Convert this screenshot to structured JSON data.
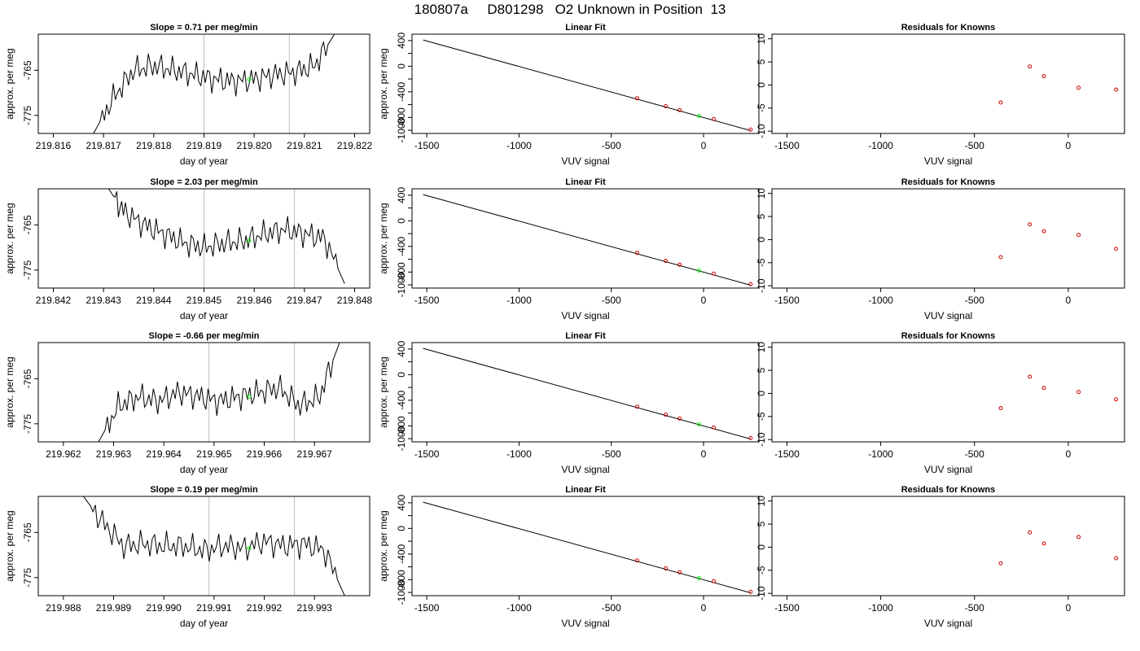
{
  "page_title": "180807a     D801298   O2 Unknown in Position  13",
  "colors": {
    "trace": "#000000",
    "unknown": "#00ff00",
    "known": "#cc0000",
    "cursor": "#bebebe",
    "frame": "#000000"
  },
  "chart_data": [
    {
      "panel": "time-series-row-1",
      "type": "line",
      "title": "Slope =  0.71  per meg/min",
      "xlabel": "day of year",
      "ylabel": "approx. per meg",
      "xlim": [
        219.8157,
        219.8223
      ],
      "ylim": [
        -779,
        -757
      ],
      "xticks": [
        219.816,
        219.817,
        219.818,
        219.819,
        219.82,
        219.821,
        219.822
      ],
      "xtick_labels": [
        "219.816",
        "219.817",
        "219.818",
        "219.819",
        "219.820",
        "219.821",
        "219.822"
      ],
      "yticks": [
        -765,
        -775
      ],
      "ytick_labels": [
        "-765",
        "-775"
      ],
      "vlines": [
        219.819,
        219.8207
      ],
      "unknown_point": {
        "x": 219.8199,
        "y": -767
      },
      "series": [
        {
          "x": [
            219.8168,
            219.8172,
            219.8176,
            219.818,
            219.8184,
            219.8188,
            219.8192,
            219.8196,
            219.82,
            219.8204,
            219.8208,
            219.8212,
            219.8216
          ],
          "y": [
            -779,
            -771,
            -765,
            -764,
            -765,
            -766,
            -767,
            -767.5,
            -767,
            -766,
            -765.5,
            -764,
            -757
          ]
        }
      ]
    },
    {
      "panel": "linear-fit-row-1",
      "type": "scatter",
      "title": "Linear Fit",
      "xlabel": "VUV signal",
      "ylabel": "approx. per meg",
      "xlim": [
        -1580,
        300
      ],
      "ylim": [
        -1050,
        500
      ],
      "xticks": [
        -1500,
        -1000,
        -500,
        0
      ],
      "xtick_labels": [
        "-1500",
        "-1000",
        "-500",
        "0"
      ],
      "yticks": [
        400,
        200,
        0,
        -200,
        -400,
        -600,
        -800,
        -1000
      ],
      "ytick_labels": [
        "400",
        "",
        "0",
        "",
        "-400",
        "",
        "-800",
        "-1000"
      ],
      "fit_line": [
        [
          -1520,
          410
        ],
        [
          255,
          -1005
        ]
      ],
      "known_points": [
        [
          -360,
          -500
        ],
        [
          -205,
          -625
        ],
        [
          -130,
          -685
        ],
        [
          55,
          -825
        ],
        [
          255,
          -990
        ]
      ],
      "unknown_point": [
        -25,
        -775
      ]
    },
    {
      "panel": "residuals-row-1",
      "type": "scatter",
      "title": "Residuals for Knowns",
      "xlabel": "VUV signal",
      "ylabel": "",
      "xlim": [
        -1580,
        300
      ],
      "ylim": [
        -10.5,
        11
      ],
      "xticks": [
        -1500,
        -1000,
        -500,
        0
      ],
      "xtick_labels": [
        "-1500",
        "-1000",
        "-500",
        "0"
      ],
      "yticks": [
        10,
        5,
        0,
        -5,
        -10
      ],
      "ytick_labels": [
        "10",
        "5",
        "0",
        "-5",
        "-10"
      ],
      "points": [
        [
          -360,
          -3.8
        ],
        [
          -205,
          4
        ],
        [
          -130,
          1.9
        ],
        [
          55,
          -0.6
        ],
        [
          255,
          -1
        ]
      ]
    },
    {
      "panel": "time-series-row-2",
      "type": "line",
      "title": "Slope =  2.03  per meg/min",
      "xlabel": "day of year",
      "ylabel": "approx. per meg",
      "xlim": [
        219.8417,
        219.8483
      ],
      "ylim": [
        -779,
        -757
      ],
      "xticks": [
        219.842,
        219.843,
        219.844,
        219.845,
        219.846,
        219.847,
        219.848
      ],
      "xtick_labels": [
        "219.842",
        "219.843",
        "219.844",
        "219.845",
        "219.846",
        "219.847",
        "219.848"
      ],
      "yticks": [
        -765,
        -775
      ],
      "ytick_labels": [
        "-765",
        "-775"
      ],
      "vlines": [
        219.845,
        219.8468
      ],
      "unknown_point": {
        "x": 219.8459,
        "y": -768.5
      },
      "series": [
        {
          "x": [
            219.8431,
            219.8434,
            219.8438,
            219.8442,
            219.8446,
            219.845,
            219.8454,
            219.8458,
            219.8462,
            219.8466,
            219.847,
            219.8474,
            219.8478
          ],
          "y": [
            -757,
            -762,
            -765,
            -767,
            -769,
            -770,
            -769,
            -768.5,
            -767,
            -766,
            -767,
            -768,
            -778
          ]
        }
      ]
    },
    {
      "panel": "linear-fit-row-2",
      "type": "scatter",
      "title": "Linear Fit",
      "xlabel": "VUV signal",
      "ylabel": "approx. per meg",
      "xlim": [
        -1580,
        300
      ],
      "ylim": [
        -1050,
        500
      ],
      "xticks": [
        -1500,
        -1000,
        -500,
        0
      ],
      "xtick_labels": [
        "-1500",
        "-1000",
        "-500",
        "0"
      ],
      "yticks": [
        400,
        200,
        0,
        -200,
        -400,
        -600,
        -800,
        -1000
      ],
      "ytick_labels": [
        "400",
        "",
        "0",
        "",
        "-400",
        "",
        "-800",
        "-1000"
      ],
      "fit_line": [
        [
          -1520,
          410
        ],
        [
          255,
          -1005
        ]
      ],
      "known_points": [
        [
          -360,
          -500
        ],
        [
          -205,
          -625
        ],
        [
          -130,
          -685
        ],
        [
          55,
          -825
        ],
        [
          255,
          -990
        ]
      ],
      "unknown_point": [
        -25,
        -775
      ]
    },
    {
      "panel": "residuals-row-2",
      "type": "scatter",
      "title": "Residuals for Knowns",
      "xlabel": "VUV signal",
      "ylabel": "",
      "xlim": [
        -1580,
        300
      ],
      "ylim": [
        -10.5,
        11
      ],
      "xticks": [
        -1500,
        -1000,
        -500,
        0
      ],
      "xtick_labels": [
        "-1500",
        "-1000",
        "-500",
        "0"
      ],
      "yticks": [
        10,
        5,
        0,
        -5,
        -10
      ],
      "ytick_labels": [
        "10",
        "5",
        "0",
        "-5",
        "-10"
      ],
      "points": [
        [
          -360,
          -3.8
        ],
        [
          -205,
          3.3
        ],
        [
          -130,
          1.8
        ],
        [
          55,
          1
        ],
        [
          255,
          -2
        ]
      ]
    },
    {
      "panel": "time-series-row-3",
      "type": "line",
      "title": "Slope =  -0.66  per meg/min",
      "xlabel": "day of year",
      "ylabel": "approx. per meg",
      "xlim": [
        219.9615,
        219.9681
      ],
      "ylim": [
        -779,
        -757
      ],
      "xticks": [
        219.962,
        219.963,
        219.964,
        219.965,
        219.966,
        219.967
      ],
      "xtick_labels": [
        "219.962",
        "219.963",
        "219.964",
        "219.965",
        "219.966",
        "219.967"
      ],
      "yticks": [
        -765,
        -775
      ],
      "ytick_labels": [
        "-765",
        "-775"
      ],
      "vlines": [
        219.9649,
        219.9666
      ],
      "unknown_point": {
        "x": 219.9657,
        "y": -769
      },
      "series": [
        {
          "x": [
            219.9627,
            219.9631,
            219.9635,
            219.9639,
            219.9643,
            219.9647,
            219.9651,
            219.9655,
            219.9659,
            219.9663,
            219.9667,
            219.9671,
            219.9675
          ],
          "y": [
            -779,
            -771,
            -769,
            -770,
            -768,
            -769,
            -770,
            -769,
            -768,
            -767,
            -771,
            -769,
            -757
          ]
        }
      ]
    },
    {
      "panel": "linear-fit-row-3",
      "type": "scatter",
      "title": "Linear Fit",
      "xlabel": "VUV signal",
      "ylabel": "approx. per meg",
      "xlim": [
        -1580,
        300
      ],
      "ylim": [
        -1050,
        500
      ],
      "xticks": [
        -1500,
        -1000,
        -500,
        0
      ],
      "xtick_labels": [
        "-1500",
        "-1000",
        "-500",
        "0"
      ],
      "yticks": [
        400,
        200,
        0,
        -200,
        -400,
        -600,
        -800,
        -1000
      ],
      "ytick_labels": [
        "400",
        "",
        "0",
        "",
        "-400",
        "",
        "-800",
        "-1000"
      ],
      "fit_line": [
        [
          -1520,
          410
        ],
        [
          255,
          -1005
        ]
      ],
      "known_points": [
        [
          -360,
          -500
        ],
        [
          -205,
          -625
        ],
        [
          -130,
          -685
        ],
        [
          55,
          -825
        ],
        [
          255,
          -990
        ]
      ],
      "unknown_point": [
        -25,
        -775
      ]
    },
    {
      "panel": "residuals-row-3",
      "type": "scatter",
      "title": "Residuals for Knowns",
      "xlabel": "VUV signal",
      "ylabel": "",
      "xlim": [
        -1580,
        300
      ],
      "ylim": [
        -10.5,
        11
      ],
      "xticks": [
        -1500,
        -1000,
        -500,
        0
      ],
      "xtick_labels": [
        "-1500",
        "-1000",
        "-500",
        "0"
      ],
      "yticks": [
        10,
        5,
        0,
        -5,
        -10
      ],
      "ytick_labels": [
        "10",
        "5",
        "0",
        "-5",
        "-10"
      ],
      "points": [
        [
          -360,
          -3.2
        ],
        [
          -205,
          3.6
        ],
        [
          -130,
          1.2
        ],
        [
          55,
          0.3
        ],
        [
          255,
          -1.3
        ]
      ]
    },
    {
      "panel": "time-series-row-4",
      "type": "line",
      "title": "Slope =  0.19  per meg/min",
      "xlabel": "day of year",
      "ylabel": "approx. per meg",
      "xlim": [
        219.9875,
        219.9941
      ],
      "ylim": [
        -779,
        -757
      ],
      "xticks": [
        219.988,
        219.989,
        219.99,
        219.991,
        219.992,
        219.993
      ],
      "xtick_labels": [
        "219.988",
        "219.989",
        "219.990",
        "219.991",
        "219.992",
        "219.993"
      ],
      "yticks": [
        -765,
        -775
      ],
      "ytick_labels": [
        "-765",
        "-775"
      ],
      "vlines": [
        219.9909,
        219.9926
      ],
      "unknown_point": {
        "x": 219.9917,
        "y": -768.5
      },
      "series": [
        {
          "x": [
            219.9884,
            219.9888,
            219.9892,
            219.9896,
            219.99,
            219.9904,
            219.9908,
            219.9912,
            219.9916,
            219.992,
            219.9924,
            219.9928,
            219.9932,
            219.9936
          ],
          "y": [
            -757,
            -763,
            -768,
            -767.5,
            -768,
            -768,
            -769,
            -768,
            -768.5,
            -767,
            -768,
            -767.5,
            -769,
            -779
          ]
        }
      ]
    },
    {
      "panel": "linear-fit-row-4",
      "type": "scatter",
      "title": "Linear Fit",
      "xlabel": "VUV signal",
      "ylabel": "approx. per meg",
      "xlim": [
        -1580,
        300
      ],
      "ylim": [
        -1050,
        500
      ],
      "xticks": [
        -1500,
        -1000,
        -500,
        0
      ],
      "xtick_labels": [
        "-1500",
        "-1000",
        "-500",
        "0"
      ],
      "yticks": [
        400,
        200,
        0,
        -200,
        -400,
        -600,
        -800,
        -1000
      ],
      "ytick_labels": [
        "400",
        "",
        "0",
        "",
        "-400",
        "",
        "-800",
        "-1000"
      ],
      "fit_line": [
        [
          -1520,
          410
        ],
        [
          255,
          -1005
        ]
      ],
      "known_points": [
        [
          -360,
          -500
        ],
        [
          -205,
          -625
        ],
        [
          -130,
          -685
        ],
        [
          55,
          -825
        ],
        [
          255,
          -990
        ]
      ],
      "unknown_point": [
        -25,
        -775
      ]
    },
    {
      "panel": "residuals-row-4",
      "type": "scatter",
      "title": "Residuals for Knowns",
      "xlabel": "VUV signal",
      "ylabel": "",
      "xlim": [
        -1580,
        300
      ],
      "ylim": [
        -10.5,
        11
      ],
      "xticks": [
        -1500,
        -1000,
        -500,
        0
      ],
      "xtick_labels": [
        "-1500",
        "-1000",
        "-500",
        "0"
      ],
      "yticks": [
        10,
        5,
        0,
        -5,
        -10
      ],
      "ytick_labels": [
        "10",
        "5",
        "0",
        "-5",
        "-10"
      ],
      "points": [
        [
          -360,
          -3.5
        ],
        [
          -205,
          3.2
        ],
        [
          -130,
          0.8
        ],
        [
          55,
          2.2
        ],
        [
          255,
          -2.4
        ]
      ]
    }
  ]
}
